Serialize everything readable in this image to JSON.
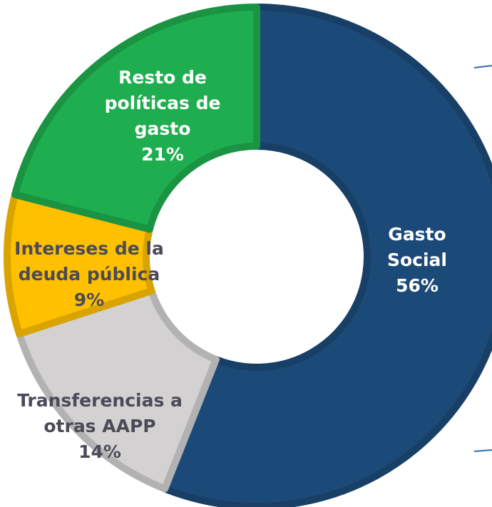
{
  "chart_data": {
    "type": "donut",
    "categories": [
      "Gasto Social",
      "Transferencias a otras AAPP",
      "Intereses de la deuda pública",
      "Resto de políticas de gasto"
    ],
    "values": [
      56,
      14,
      9,
      21
    ],
    "value_labels": [
      "56%",
      "14%",
      "9%",
      "21%"
    ],
    "colors": [
      "#1c4a78",
      "#d3d1d1",
      "#ffc000",
      "#1fae4f"
    ]
  }
}
